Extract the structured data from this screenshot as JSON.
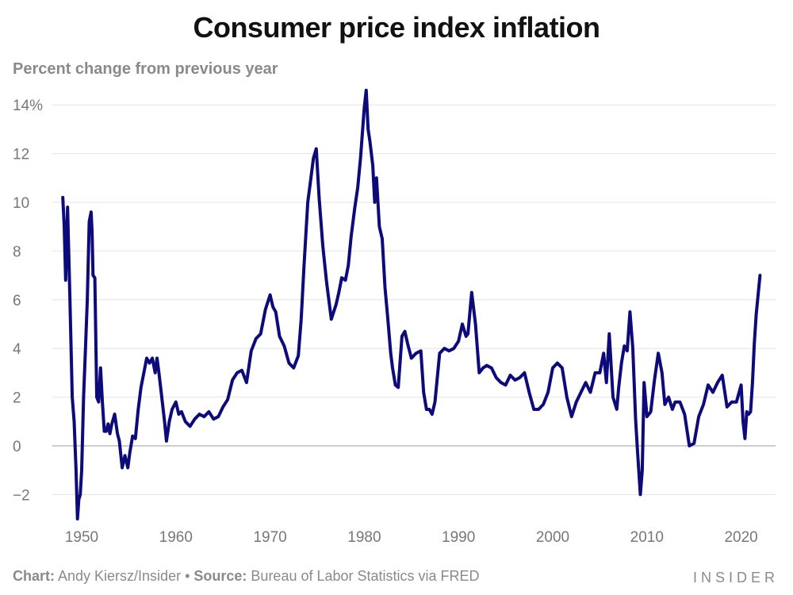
{
  "chart_data": {
    "type": "line",
    "title": "Consumer price index inflation",
    "subtitle": "Percent change from previous year",
    "xlabel": "",
    "ylabel": "",
    "xlim": [
      1948,
      2023
    ],
    "ylim": [
      -3,
      14.5
    ],
    "y_ticks": [
      14,
      12,
      10,
      8,
      6,
      4,
      2,
      0,
      -2
    ],
    "y_tick_labels": [
      "14%",
      "12",
      "10",
      "8",
      "6",
      "4",
      "2",
      "0",
      "−2"
    ],
    "x_ticks": [
      1950,
      1960,
      1970,
      1980,
      1990,
      2000,
      2010,
      2020
    ],
    "x_tick_labels": [
      "1950",
      "1960",
      "1970",
      "1980",
      "1990",
      "2000",
      "2010",
      "2020"
    ],
    "grid": true,
    "series": [
      {
        "color": "#0d0a7a",
        "x": [
          1948.0,
          1948.15,
          1948.3,
          1948.5,
          1948.75,
          1949.0,
          1949.2,
          1949.4,
          1949.55,
          1949.7,
          1949.85,
          1950.0,
          1950.2,
          1950.4,
          1950.6,
          1950.8,
          1951.0,
          1951.1,
          1951.2,
          1951.4,
          1951.6,
          1951.8,
          1952.0,
          1952.2,
          1952.4,
          1952.6,
          1952.8,
          1953.0,
          1953.2,
          1953.5,
          1953.8,
          1954.0,
          1954.3,
          1954.6,
          1954.9,
          1955.1,
          1955.4,
          1955.7,
          1956.0,
          1956.3,
          1956.6,
          1956.9,
          1957.2,
          1957.5,
          1957.8,
          1958.0,
          1958.2,
          1958.5,
          1958.8,
          1959.0,
          1959.3,
          1959.6,
          1960.0,
          1960.3,
          1960.6,
          1961.0,
          1961.5,
          1962.0,
          1962.5,
          1963.0,
          1963.5,
          1964.0,
          1964.5,
          1965.0,
          1965.5,
          1966.0,
          1966.5,
          1967.0,
          1967.5,
          1968.0,
          1968.5,
          1969.0,
          1969.5,
          1970.0,
          1970.3,
          1970.6,
          1971.0,
          1971.5,
          1972.0,
          1972.5,
          1973.0,
          1973.3,
          1973.6,
          1974.0,
          1974.3,
          1974.6,
          1974.9,
          1975.2,
          1975.6,
          1976.0,
          1976.5,
          1977.0,
          1977.3,
          1977.6,
          1978.0,
          1978.3,
          1978.6,
          1979.0,
          1979.3,
          1979.6,
          1980.0,
          1980.2,
          1980.4,
          1980.6,
          1980.9,
          1981.1,
          1981.3,
          1981.6,
          1981.9,
          1982.2,
          1982.5,
          1982.8,
          1983.0,
          1983.3,
          1983.6,
          1984.0,
          1984.3,
          1984.6,
          1985.0,
          1985.5,
          1986.0,
          1986.3,
          1986.6,
          1986.9,
          1987.2,
          1987.5,
          1988.0,
          1988.5,
          1989.0,
          1989.5,
          1990.0,
          1990.4,
          1990.8,
          1991.0,
          1991.4,
          1991.8,
          1992.2,
          1992.6,
          1993.0,
          1993.5,
          1994.0,
          1994.5,
          1995.0,
          1995.5,
          1996.0,
          1996.5,
          1997.0,
          1997.5,
          1998.0,
          1998.5,
          1999.0,
          1999.5,
          2000.0,
          2000.5,
          2001.0,
          2001.5,
          2002.0,
          2002.5,
          2003.0,
          2003.5,
          2004.0,
          2004.5,
          2005.0,
          2005.4,
          2005.7,
          2006.0,
          2006.4,
          2006.8,
          2007.0,
          2007.3,
          2007.6,
          2007.9,
          2008.2,
          2008.5,
          2008.8,
          2009.0,
          2009.3,
          2009.5,
          2009.7,
          2010.0,
          2010.4,
          2010.8,
          2011.2,
          2011.6,
          2011.9,
          2012.3,
          2012.7,
          2013.0,
          2013.5,
          2014.0,
          2014.5,
          2015.0,
          2015.5,
          2016.0,
          2016.5,
          2017.0,
          2017.5,
          2018.0,
          2018.5,
          2019.0,
          2019.5,
          2020.0,
          2020.2,
          2020.4,
          2020.6,
          2020.8,
          2021.0,
          2021.2,
          2021.4,
          2021.6,
          2021.8,
          2022.0
        ],
        "y": [
          10.2,
          9.0,
          6.8,
          9.8,
          6.0,
          2.0,
          1.0,
          -1.0,
          -3.0,
          -2.2,
          -2.0,
          -1.0,
          2.0,
          4.0,
          6.0,
          9.2,
          9.6,
          8.8,
          7.0,
          6.9,
          2.0,
          1.8,
          3.2,
          1.8,
          0.6,
          0.6,
          0.9,
          0.5,
          0.9,
          1.3,
          0.5,
          0.2,
          -0.9,
          -0.4,
          -0.9,
          -0.3,
          0.4,
          0.3,
          1.5,
          2.4,
          3.0,
          3.6,
          3.4,
          3.6,
          3.0,
          3.6,
          3.0,
          2.0,
          1.0,
          0.2,
          1.0,
          1.5,
          1.8,
          1.3,
          1.4,
          1.0,
          0.8,
          1.1,
          1.3,
          1.2,
          1.4,
          1.1,
          1.2,
          1.6,
          1.9,
          2.7,
          3.0,
          3.1,
          2.6,
          3.9,
          4.4,
          4.6,
          5.6,
          6.2,
          5.7,
          5.5,
          4.5,
          4.1,
          3.4,
          3.2,
          3.7,
          5.2,
          7.4,
          10.0,
          10.9,
          11.8,
          12.2,
          10.2,
          8.2,
          6.7,
          5.2,
          5.8,
          6.3,
          6.9,
          6.8,
          7.4,
          8.6,
          9.8,
          10.6,
          11.8,
          13.9,
          14.6,
          13.0,
          12.5,
          11.5,
          10.0,
          11.0,
          9.0,
          8.5,
          6.5,
          5.2,
          3.8,
          3.2,
          2.5,
          2.4,
          4.5,
          4.7,
          4.2,
          3.6,
          3.8,
          3.9,
          2.2,
          1.5,
          1.5,
          1.3,
          1.8,
          3.8,
          4.0,
          3.9,
          4.0,
          4.3,
          5.0,
          4.5,
          4.6,
          6.3,
          5.0,
          3.0,
          3.2,
          3.3,
          3.2,
          2.8,
          2.6,
          2.5,
          2.9,
          2.7,
          2.8,
          3.0,
          2.2,
          1.5,
          1.5,
          1.7,
          2.2,
          3.2,
          3.4,
          3.2,
          2.0,
          1.2,
          1.8,
          2.2,
          2.6,
          2.2,
          3.0,
          3.0,
          3.8,
          2.6,
          4.6,
          2.0,
          1.5,
          2.4,
          3.4,
          4.1,
          3.9,
          5.5,
          4.0,
          1.1,
          -0.2,
          -2.0,
          -1.0,
          2.6,
          1.2,
          1.4,
          2.7,
          3.8,
          3.0,
          1.7,
          2.0,
          1.5,
          1.8,
          1.8,
          1.3,
          0.0,
          0.1,
          1.2,
          1.7,
          2.5,
          2.2,
          2.6,
          2.9,
          1.6,
          1.8,
          1.8,
          2.5,
          1.0,
          0.3,
          1.4,
          1.3,
          1.4,
          2.6,
          4.2,
          5.4,
          6.2,
          7.0
        ]
      }
    ]
  },
  "footer": {
    "chart_label": "Chart:",
    "chart_author": " Andy Kiersz/Insider • ",
    "source_label": "Source:",
    "source_text": " Bureau of Labor Statistics via FRED",
    "logo": "INSIDER"
  }
}
